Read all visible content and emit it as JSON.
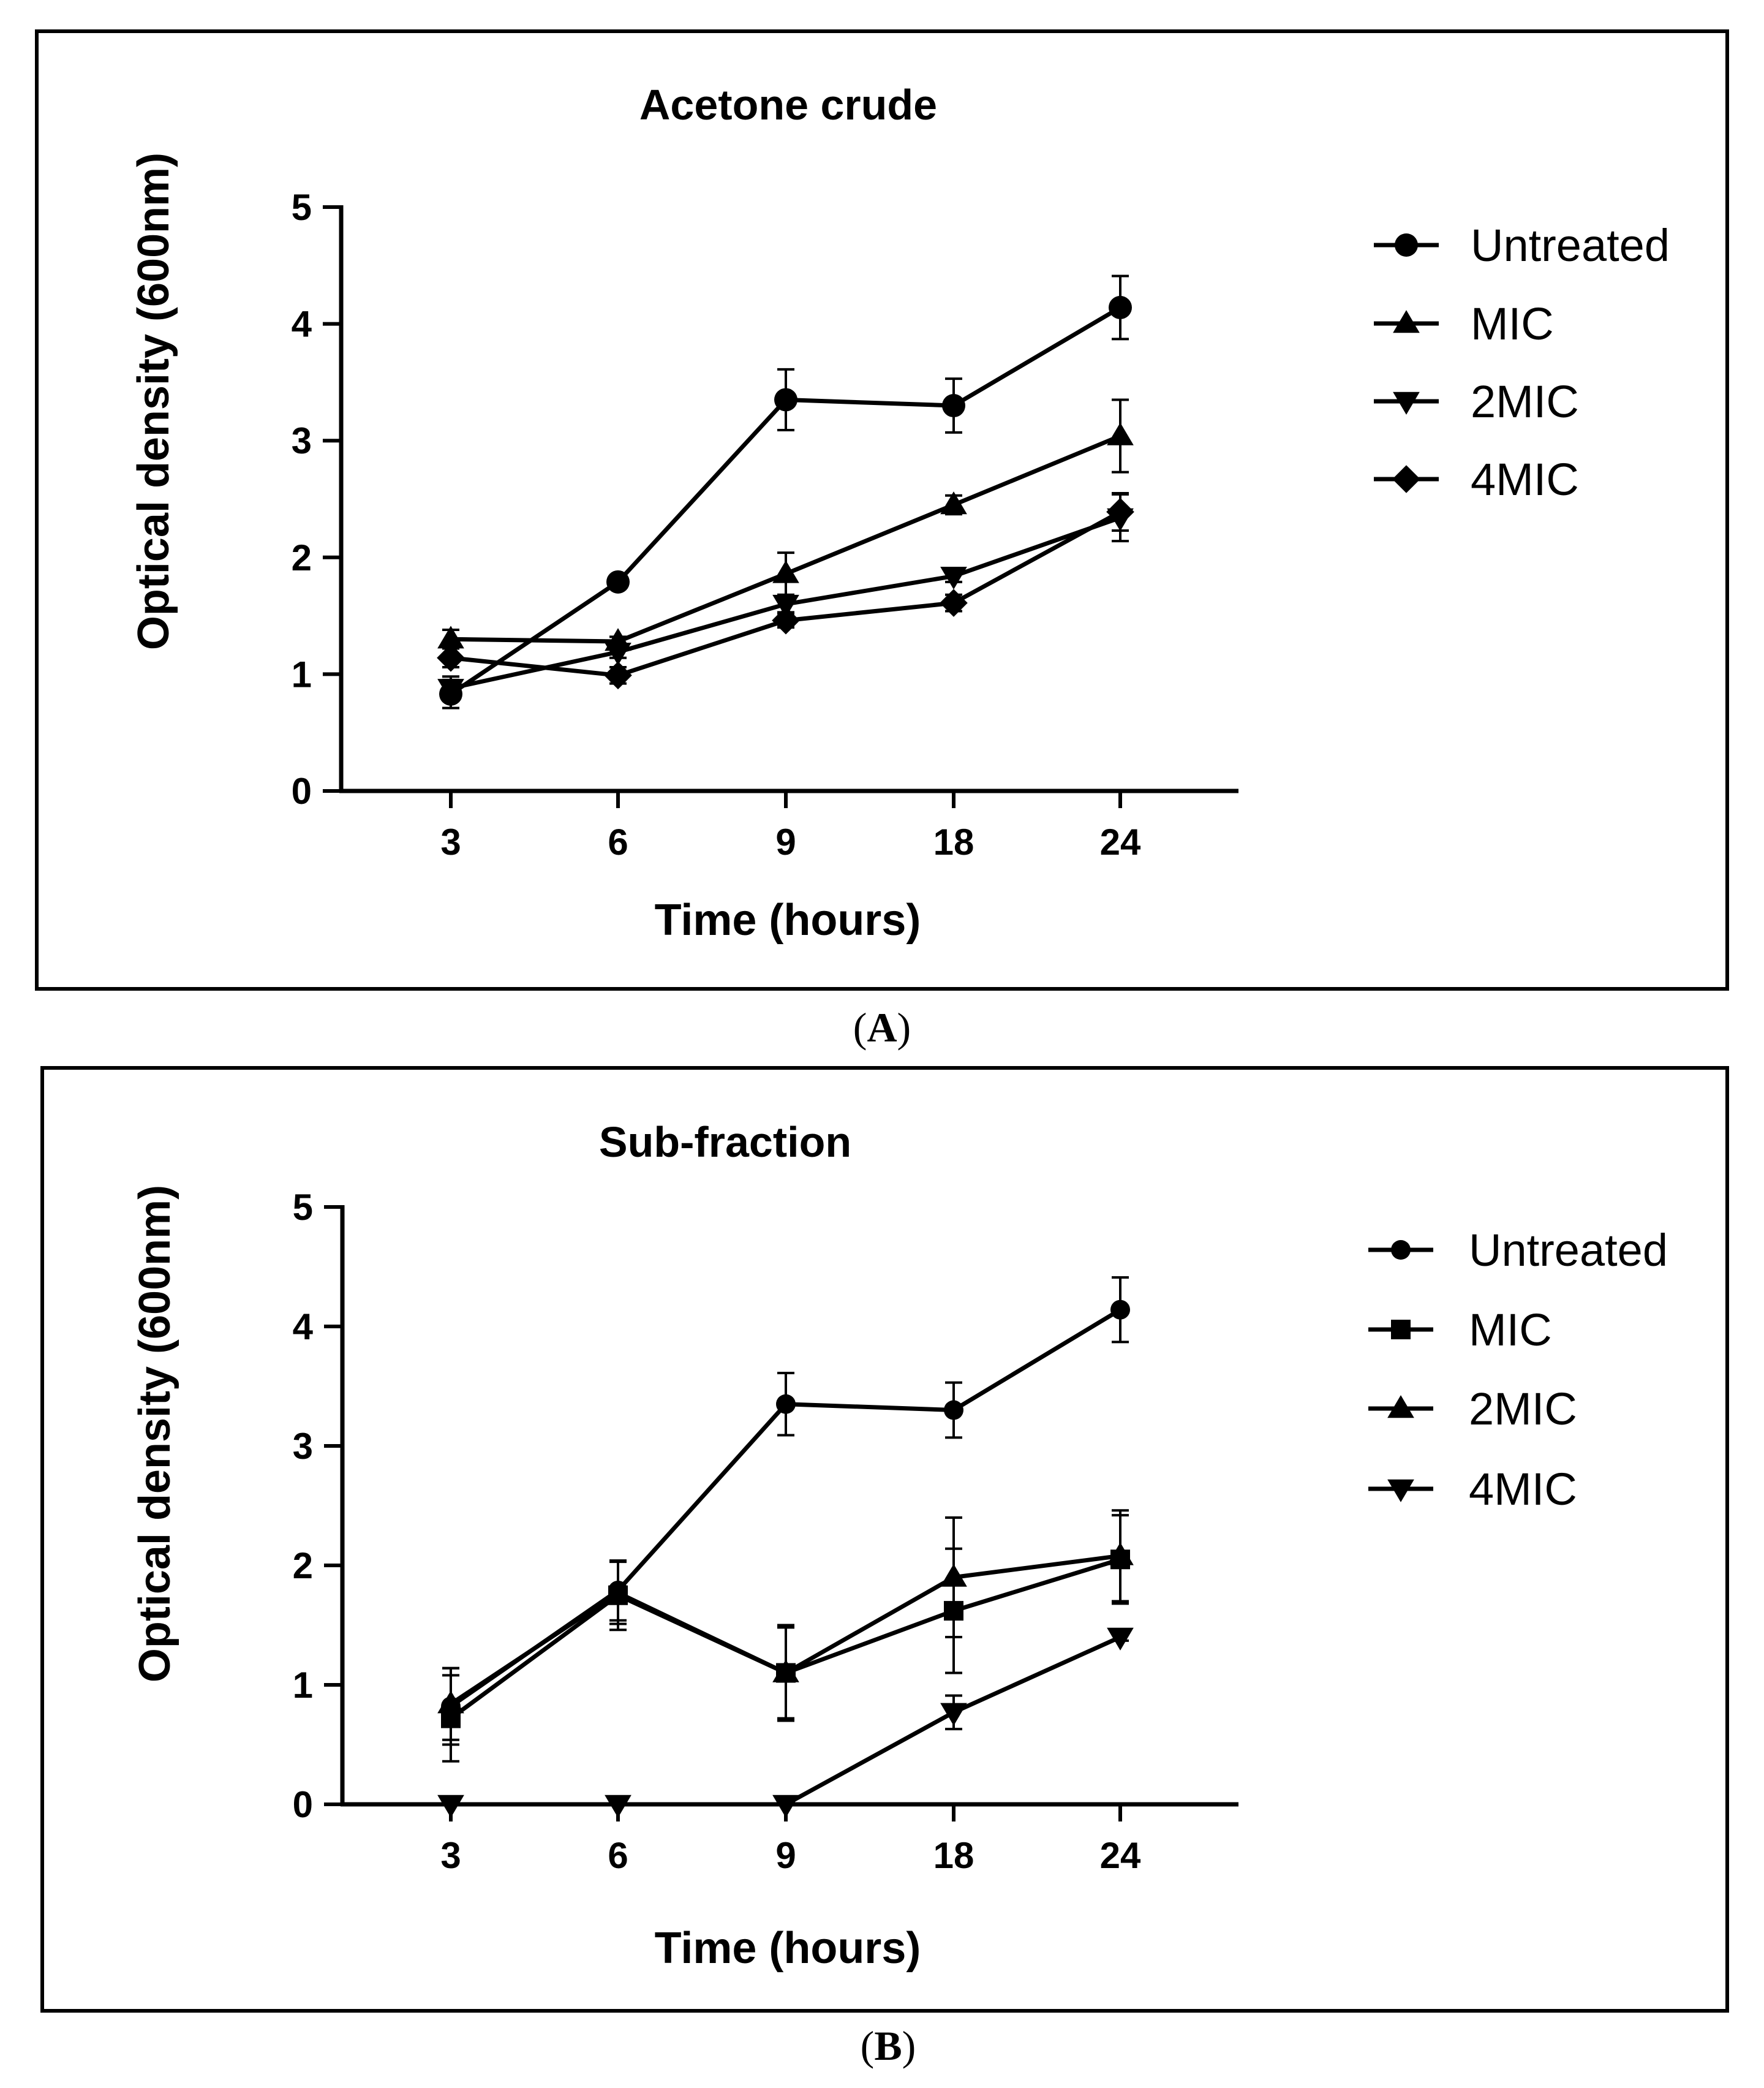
{
  "chart_data": [
    {
      "type": "line",
      "panel_label": "A",
      "title": "Acetone crude",
      "xlabel": "Time (hours)",
      "ylabel": "Optical density (600nm)",
      "categories": [
        "3",
        "6",
        "9",
        "18",
        "24"
      ],
      "yticks": [
        "0",
        "1",
        "2",
        "3",
        "4",
        "5"
      ],
      "ylim": [
        0,
        5
      ],
      "legend_position": "right",
      "series": [
        {
          "name": "Untreated",
          "marker": "circle",
          "values": [
            0.83,
            1.79,
            3.35,
            3.3,
            4.14
          ],
          "errors": [
            0.12,
            0.04,
            0.26,
            0.23,
            0.27
          ]
        },
        {
          "name": "MIC",
          "marker": "triangle-up",
          "values": [
            1.3,
            1.28,
            1.86,
            2.45,
            3.04
          ],
          "errors": [
            0.08,
            0.04,
            0.18,
            0.08,
            0.31
          ]
        },
        {
          "name": "2MIC",
          "marker": "triangle-down",
          "values": [
            0.88,
            1.19,
            1.6,
            1.84,
            2.34
          ],
          "errors": [
            0.1,
            0.05,
            0.07,
            0.05,
            0.2
          ]
        },
        {
          "name": "4MIC",
          "marker": "diamond",
          "values": [
            1.14,
            0.99,
            1.46,
            1.61,
            2.39
          ],
          "errors": [
            0.08,
            0.07,
            0.06,
            0.07,
            0.16
          ]
        }
      ]
    },
    {
      "type": "line",
      "panel_label": "B",
      "title": "Sub-fraction",
      "xlabel": "Time (hours)",
      "ylabel": "Optical density (600nm)",
      "categories": [
        "3",
        "6",
        "9",
        "18",
        "24"
      ],
      "yticks": [
        "0",
        "1",
        "2",
        "3",
        "4",
        "5"
      ],
      "ylim": [
        0,
        5
      ],
      "legend_position": "right",
      "series": [
        {
          "name": "Untreated",
          "marker": "circle-small",
          "values": [
            0.82,
            1.79,
            3.35,
            3.3,
            4.14
          ],
          "errors": [
            0.32,
            0.25,
            0.26,
            0.23,
            0.27
          ]
        },
        {
          "name": "MIC",
          "marker": "square",
          "values": [
            0.72,
            1.75,
            1.1,
            1.62,
            2.05
          ],
          "errors": [
            0.36,
            0.29,
            0.38,
            0.52,
            0.37
          ]
        },
        {
          "name": "2MIC",
          "marker": "triangle-up",
          "values": [
            0.84,
            1.77,
            1.1,
            1.9,
            2.08
          ],
          "errors": [
            0.3,
            0.26,
            0.4,
            0.5,
            0.38
          ]
        },
        {
          "name": "4MIC",
          "marker": "triangle-down",
          "values": [
            0.0,
            0.0,
            0.0,
            0.77,
            1.4
          ],
          "errors": [
            0,
            0,
            0,
            0.14,
            0.03
          ]
        }
      ]
    }
  ],
  "labels": {
    "panel_a": "A",
    "panel_b": "B"
  }
}
